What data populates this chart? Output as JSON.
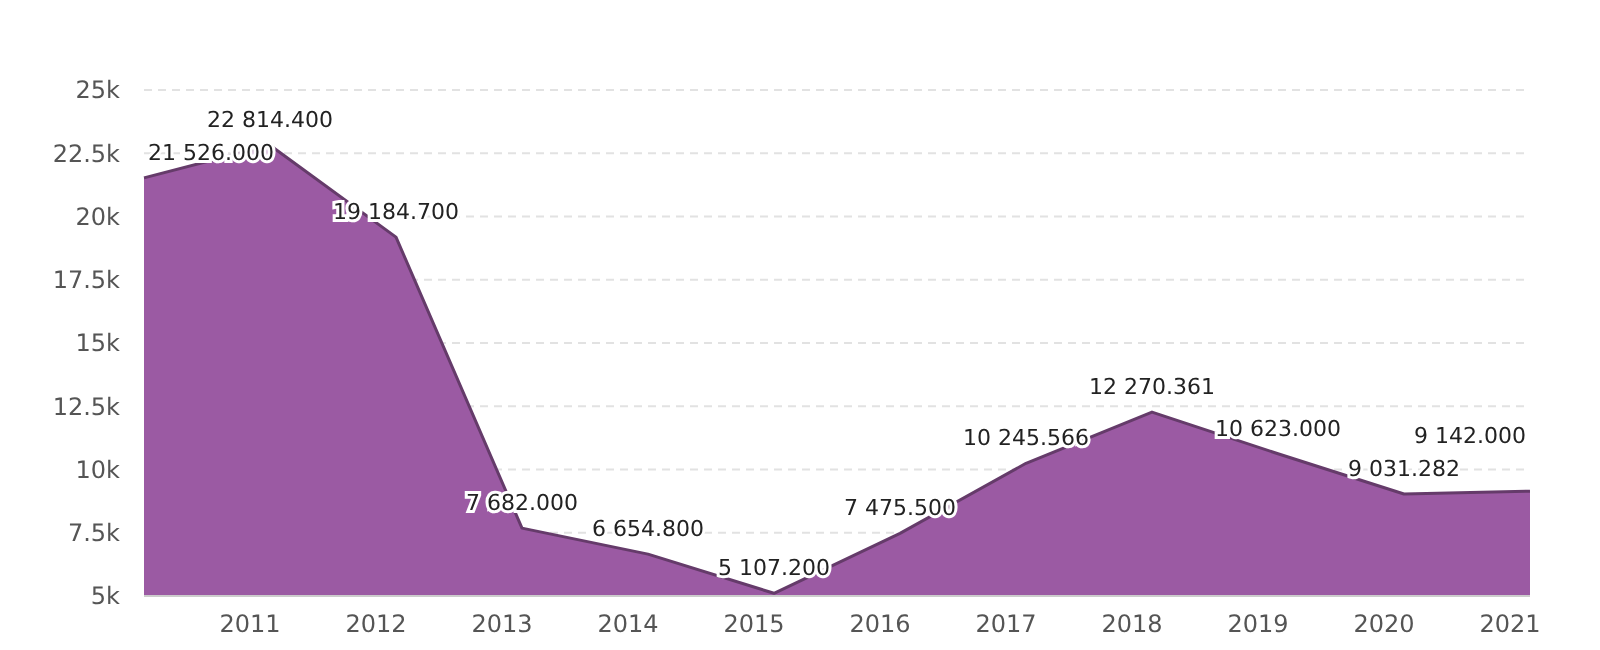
{
  "chart_data": {
    "type": "area",
    "categories": [
      null,
      "2011",
      "2012",
      "2013",
      "2014",
      "2015",
      "2016",
      "2017",
      "2018",
      "2019",
      "2020",
      "2021"
    ],
    "series": [
      {
        "color": "#9b5aa3",
        "values": [
          21526,
          22814.4,
          19184.7,
          7682,
          6654.8,
          5107.2,
          7475.5,
          10245.566,
          12270.361,
          10623,
          9031.282,
          9142
        ],
        "value_labels": [
          "21 526.000",
          "22 814.400",
          "19 184.700",
          "7 682.000",
          "6 654.800",
          "5 107.200",
          "7 475.500",
          "10 245.566",
          "12 270.361",
          "10 623.000",
          "9 031.282",
          "9 142.000"
        ]
      }
    ],
    "ylim": [
      5000,
      25000
    ],
    "yticks": [
      {
        "value": 5000,
        "label": "5k"
      },
      {
        "value": 7500,
        "label": "7.5k"
      },
      {
        "value": 10000,
        "label": "10k"
      },
      {
        "value": 12500,
        "label": "12.5k"
      },
      {
        "value": 15000,
        "label": "15k"
      },
      {
        "value": 17500,
        "label": "17.5k"
      },
      {
        "value": 20000,
        "label": "20k"
      },
      {
        "value": 22500,
        "label": "22.5k"
      },
      {
        "value": 25000,
        "label": "25k"
      }
    ],
    "grid": "y"
  }
}
